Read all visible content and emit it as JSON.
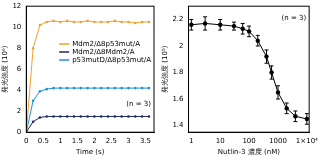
{
  "chart_data": [
    {
      "type": "line",
      "x_label": "Time (s)",
      "y_label": "発光強度 (10⁶)",
      "x": [
        0,
        0.2,
        0.4,
        0.6,
        0.8,
        1.0,
        1.2,
        1.4,
        1.6,
        1.8,
        2.0,
        2.2,
        2.4,
        2.6,
        2.8,
        3.0,
        3.2,
        3.4,
        3.6
      ],
      "series": [
        {
          "name": "Mdm2/Δ8p53mut/A",
          "color": "#f0a030",
          "values": [
            0,
            8.0,
            10.2,
            10.5,
            10.6,
            10.5,
            10.6,
            10.5,
            10.5,
            10.6,
            10.5,
            10.5,
            10.5,
            10.6,
            10.5,
            10.5,
            10.4,
            10.5,
            10.5
          ]
        },
        {
          "name": "Mdm2/Δ8Mdm2/A",
          "color": "#1a2a5a",
          "values": [
            0,
            1.0,
            1.4,
            1.5,
            1.5,
            1.5,
            1.5,
            1.5,
            1.5,
            1.5,
            1.5,
            1.5,
            1.5,
            1.5,
            1.5,
            1.5,
            1.5,
            1.5,
            1.5
          ]
        },
        {
          "name": "p53mutD/Δ8p53mut/A",
          "color": "#1e90d8",
          "values": [
            0,
            3.0,
            3.9,
            4.1,
            4.2,
            4.2,
            4.2,
            4.2,
            4.2,
            4.2,
            4.2,
            4.2,
            4.2,
            4.2,
            4.2,
            4.2,
            4.2,
            4.2,
            4.2
          ]
        }
      ],
      "xlim": [
        0,
        3.75
      ],
      "xticks": [
        0,
        0.5,
        1,
        1.5,
        2,
        2.5,
        3,
        3.5
      ],
      "ylim": [
        0,
        12
      ],
      "yticks": [
        0,
        2,
        4,
        6,
        8,
        10,
        12
      ],
      "grid": false,
      "legend": "right",
      "annotation": "(n = 3)"
    },
    {
      "type": "scatter",
      "x_label": "Nutlin-3 濃度 (nM)",
      "y_label": "発光強度 (10⁵)",
      "x": [
        1,
        3,
        10,
        30,
        60,
        100,
        200,
        400,
        600,
        1000,
        2000,
        4000,
        10000
      ],
      "series": [
        {
          "name": "Nutlin-3",
          "color": "#000000",
          "values": [
            2.16,
            2.17,
            2.16,
            2.15,
            2.13,
            2.11,
            2.04,
            1.92,
            1.8,
            1.65,
            1.53,
            1.47,
            1.45
          ],
          "errors": [
            0.04,
            0.05,
            0.04,
            0.03,
            0.04,
            0.04,
            0.04,
            0.05,
            0.05,
            0.05,
            0.04,
            0.04,
            0.04
          ]
        }
      ],
      "log": "x",
      "xlim": [
        0.8,
        12000
      ],
      "xticks": [
        1,
        10,
        100,
        1000,
        {
          "value": 10000,
          "label": "1×10⁴"
        }
      ],
      "ylim": [
        1.35,
        2.3
      ],
      "yticks": [
        1.4,
        1.6,
        1.8,
        2,
        2.2
      ],
      "grid": false,
      "annotation": "(n = 3)"
    }
  ]
}
